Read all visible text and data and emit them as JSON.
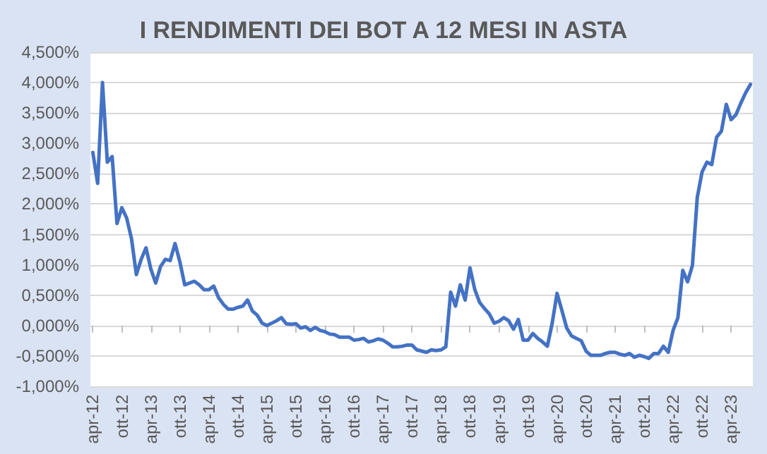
{
  "chart_data": {
    "type": "line",
    "title": "I RENDIMENTI DEI BOT A 12 MESI IN ASTA",
    "categories": [
      "apr-12",
      null,
      null,
      null,
      null,
      null,
      "ott-12",
      null,
      null,
      null,
      null,
      null,
      "apr-13",
      null,
      null,
      null,
      null,
      null,
      "ott-13",
      null,
      null,
      null,
      null,
      null,
      "apr-14",
      null,
      null,
      null,
      null,
      null,
      "ott-14",
      null,
      null,
      null,
      null,
      null,
      "apr-15",
      null,
      null,
      null,
      null,
      null,
      "ott-15",
      null,
      null,
      null,
      null,
      null,
      "apr-16",
      null,
      null,
      null,
      null,
      null,
      "ott-16",
      null,
      null,
      null,
      null,
      null,
      "apr-17",
      null,
      null,
      null,
      null,
      null,
      "ott-17",
      null,
      null,
      null,
      null,
      null,
      "apr-18",
      null,
      null,
      null,
      null,
      null,
      "ott-18",
      null,
      null,
      null,
      null,
      null,
      "apr-19",
      null,
      null,
      null,
      null,
      null,
      "ott-19",
      null,
      null,
      null,
      null,
      null,
      "apr-20",
      null,
      null,
      null,
      null,
      null,
      "ott-20",
      null,
      null,
      null,
      null,
      null,
      "apr-21",
      null,
      null,
      null,
      null,
      null,
      "ott-21",
      null,
      null,
      null,
      null,
      null,
      "apr-22",
      null,
      null,
      null,
      null,
      null,
      "ott-22",
      null,
      null,
      null,
      null,
      null,
      "apr-23",
      null,
      null,
      null,
      null
    ],
    "series": [
      {
        "color": "#4472c4",
        "values": [
          2.85,
          2.34,
          4.0,
          2.69,
          2.78,
          1.68,
          1.94,
          1.77,
          1.43,
          0.84,
          1.09,
          1.28,
          0.93,
          0.7,
          0.97,
          1.09,
          1.07,
          1.35,
          1.05,
          0.67,
          0.7,
          0.73,
          0.67,
          0.59,
          0.59,
          0.65,
          0.46,
          0.35,
          0.27,
          0.27,
          0.3,
          0.32,
          0.42,
          0.24,
          0.17,
          0.04,
          0.0,
          0.04,
          0.08,
          0.13,
          0.03,
          0.02,
          0.03,
          -0.04,
          -0.02,
          -0.08,
          -0.03,
          -0.08,
          -0.1,
          -0.14,
          -0.15,
          -0.19,
          -0.19,
          -0.19,
          -0.24,
          -0.23,
          -0.21,
          -0.27,
          -0.25,
          -0.22,
          -0.24,
          -0.29,
          -0.35,
          -0.35,
          -0.34,
          -0.32,
          -0.32,
          -0.4,
          -0.42,
          -0.44,
          -0.4,
          -0.41,
          -0.4,
          -0.35,
          0.55,
          0.32,
          0.67,
          0.42,
          0.95,
          0.59,
          0.38,
          0.28,
          0.19,
          0.04,
          0.07,
          0.13,
          0.08,
          -0.06,
          0.1,
          -0.24,
          -0.24,
          -0.13,
          -0.21,
          -0.27,
          -0.34,
          0.04,
          0.53,
          0.25,
          -0.04,
          -0.17,
          -0.21,
          -0.25,
          -0.42,
          -0.49,
          -0.49,
          -0.49,
          -0.46,
          -0.44,
          -0.44,
          -0.47,
          -0.49,
          -0.46,
          -0.52,
          -0.49,
          -0.51,
          -0.54,
          -0.46,
          -0.46,
          -0.34,
          -0.44,
          -0.08,
          0.13,
          0.91,
          0.72,
          0.99,
          2.11,
          2.53,
          2.69,
          2.65,
          3.1,
          3.2,
          3.64,
          3.39,
          3.47,
          3.66,
          3.83,
          3.97
        ]
      }
    ],
    "ylim": [
      -1,
      4.5
    ],
    "yticks": [
      {
        "value": -1,
        "label": "-1,000%"
      },
      {
        "value": -0.5,
        "label": "-0,500%"
      },
      {
        "value": 0,
        "label": "0,000%"
      },
      {
        "value": 0.5,
        "label": "0,500%"
      },
      {
        "value": 1,
        "label": "1,000%"
      },
      {
        "value": 1.5,
        "label": "1,500%"
      },
      {
        "value": 2,
        "label": "2,000%"
      },
      {
        "value": 2.5,
        "label": "2,500%"
      },
      {
        "value": 3,
        "label": "3,000%"
      },
      {
        "value": 3.5,
        "label": "3,500%"
      },
      {
        "value": 4,
        "label": "4,000%"
      },
      {
        "value": 4.5,
        "label": "4,500%"
      }
    ],
    "grid": "y",
    "marker": "none",
    "line_style": "solid"
  }
}
